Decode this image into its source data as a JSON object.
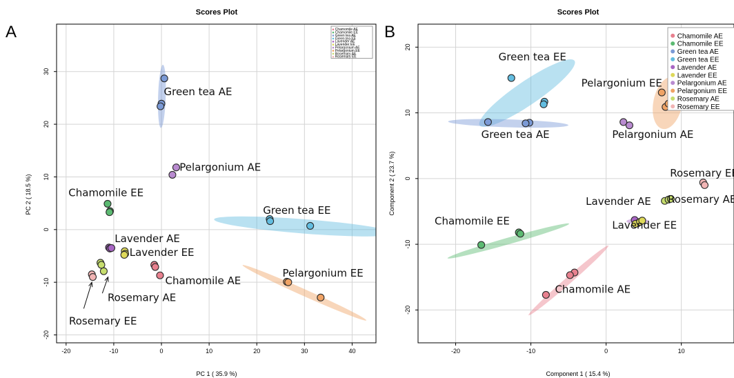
{
  "chart_data": [
    {
      "type": "scatter",
      "panel_letter": "A",
      "title": "Scores Plot",
      "xlabel": "PC 1 ( 35.9 %)",
      "ylabel": "PC 2 ( 18.5 %)",
      "xlim": [
        -22,
        45
      ],
      "ylim": [
        -21.5,
        39
      ],
      "xticks": [
        -20,
        -10,
        0,
        10,
        20,
        30,
        40
      ],
      "yticks": [
        -20,
        -10,
        0,
        10,
        20,
        30
      ],
      "grid": true,
      "legend_position": "top-right",
      "series": [
        {
          "name": "Chamomile AE",
          "color": "#e8818f",
          "points": [
            [
              -1.5,
              -6.7
            ],
            [
              -1.3,
              -7.1
            ],
            [
              -0.3,
              -8.7
            ]
          ]
        },
        {
          "name": "Chamomile EE",
          "color": "#5cba72",
          "points": [
            [
              -11.3,
              4.9
            ],
            [
              -10.8,
              3.5
            ],
            [
              -10.9,
              3.3
            ]
          ]
        },
        {
          "name": "Green tea AE",
          "color": "#7b9ad6",
          "points": [
            [
              0.6,
              28.7
            ],
            [
              0.0,
              23.9
            ],
            [
              -0.2,
              23.4
            ]
          ]
        },
        {
          "name": "Green tea EE",
          "color": "#63bde0",
          "points": [
            [
              22.7,
              2.0
            ],
            [
              22.8,
              1.6
            ],
            [
              31.2,
              0.7
            ]
          ]
        },
        {
          "name": "Lavender AE",
          "color": "#a866c4",
          "points": [
            [
              -11.0,
              -3.4
            ],
            [
              -10.8,
              -3.6
            ],
            [
              -10.5,
              -3.5
            ]
          ]
        },
        {
          "name": "Lavender EE",
          "color": "#ded95a",
          "points": [
            [
              -7.7,
              -4.1
            ],
            [
              -7.6,
              -4.6
            ],
            [
              -7.8,
              -4.8
            ]
          ]
        },
        {
          "name": "Pelargonium AE",
          "color": "#b98bd0",
          "points": [
            [
              3.1,
              11.8
            ],
            [
              2.3,
              10.4
            ]
          ]
        },
        {
          "name": "Pelargonium EE",
          "color": "#f0a365",
          "points": [
            [
              26.3,
              -9.9
            ],
            [
              26.6,
              -10.0
            ],
            [
              33.4,
              -12.9
            ]
          ]
        },
        {
          "name": "Rosemary AE",
          "color": "#c7de6e",
          "points": [
            [
              -12.8,
              -6.3
            ],
            [
              -12.6,
              -6.7
            ],
            [
              -12.1,
              -7.9
            ]
          ]
        },
        {
          "name": "Rosemary EE",
          "color": "#f2b5b5",
          "points": [
            [
              -14.6,
              -8.5
            ],
            [
              -14.4,
              -9.0
            ]
          ]
        }
      ],
      "ellipses": [
        {
          "series": "Green tea AE",
          "cx": 0.1,
          "cy": 25.3,
          "len": 12,
          "width": 0.8,
          "angle": 88,
          "color": "#7b9ad6"
        },
        {
          "series": "Green tea EE",
          "cx": 30.0,
          "cy": 0.6,
          "len": 38,
          "width": 1.5,
          "angle": -4,
          "color": "#63bde0"
        },
        {
          "series": "Pelargonium EE",
          "cx": 30.0,
          "cy": -12.0,
          "len": 28,
          "width": 0.7,
          "angle": -22,
          "color": "#f0a365"
        }
      ],
      "annotations": [
        {
          "text": "Green tea AE",
          "x": 0.5,
          "y": 25.5
        },
        {
          "text": "Pelargonium AE",
          "x": 3.8,
          "y": 11.2
        },
        {
          "text": "Chamomile EE",
          "x": -19.5,
          "y": 6.3
        },
        {
          "text": "Green tea EE",
          "x": 21.3,
          "y": 3.0
        },
        {
          "text": "Lavender AE",
          "x": -9.8,
          "y": -2.4
        },
        {
          "text": "Lavender EE",
          "x": -6.7,
          "y": -5.0
        },
        {
          "text": "Chamomile AE",
          "x": 0.8,
          "y": -10.4
        },
        {
          "text": "Pelargonium EE",
          "x": 25.4,
          "y": -8.9
        },
        {
          "text": "Rosemary AE",
          "x": -11.3,
          "y": -13.6
        },
        {
          "text": "Rosemary EE",
          "x": -19.4,
          "y": -18.0
        }
      ],
      "arrows": [
        {
          "from": [
            -12.4,
            -12.1
          ],
          "to": [
            -11.2,
            -9.0
          ]
        },
        {
          "from": [
            -16.3,
            -15.0
          ],
          "to": [
            -14.6,
            -10.0
          ]
        }
      ]
    },
    {
      "type": "scatter",
      "panel_letter": "B",
      "title": "Scores Plot",
      "xlabel": "Component 1 ( 15.4 %)",
      "ylabel": "Component 2 ( 23.7 %)",
      "xlim": [
        -25,
        17
      ],
      "ylim": [
        -25,
        23.5
      ],
      "xticks": [
        -20,
        -10,
        0,
        10
      ],
      "yticks": [
        -20,
        -10,
        0,
        10,
        20
      ],
      "grid": true,
      "legend_position": "top-right",
      "series": [
        {
          "name": "Chamomile AE",
          "color": "#e8818f",
          "points": [
            [
              -4.2,
              -14.3
            ],
            [
              -4.8,
              -14.7
            ],
            [
              -8.0,
              -17.7
            ]
          ]
        },
        {
          "name": "Chamomile EE",
          "color": "#5cba72",
          "points": [
            [
              -11.6,
              -8.2
            ],
            [
              -11.4,
              -8.4
            ],
            [
              -16.6,
              -10.1
            ]
          ]
        },
        {
          "name": "Green tea AE",
          "color": "#7b9ad6",
          "points": [
            [
              -15.7,
              8.6
            ],
            [
              -10.2,
              8.5
            ],
            [
              -10.7,
              8.4
            ]
          ]
        },
        {
          "name": "Green tea EE",
          "color": "#63bde0",
          "points": [
            [
              -12.6,
              15.3
            ],
            [
              -8.2,
              11.7
            ],
            [
              -8.3,
              11.3
            ]
          ]
        },
        {
          "name": "Lavender AE",
          "color": "#a866c4",
          "points": [
            [
              3.8,
              -6.3
            ],
            [
              4.2,
              -6.8
            ]
          ]
        },
        {
          "name": "Lavender EE",
          "color": "#ded95a",
          "points": [
            [
              3.9,
              -6.9
            ],
            [
              4.5,
              -6.6
            ],
            [
              4.8,
              -6.4
            ]
          ]
        },
        {
          "name": "Pelargonium AE",
          "color": "#b98bd0",
          "points": [
            [
              2.3,
              8.6
            ],
            [
              3.1,
              8.1
            ]
          ]
        },
        {
          "name": "Pelargonium EE",
          "color": "#f0a365",
          "points": [
            [
              7.4,
              13.1
            ],
            [
              7.9,
              10.9
            ],
            [
              8.3,
              11.4
            ]
          ]
        },
        {
          "name": "Rosemary AE",
          "color": "#c7de6e",
          "points": [
            [
              7.8,
              -3.4
            ],
            [
              8.3,
              -3.2
            ],
            [
              8.6,
              -3.1
            ]
          ]
        },
        {
          "name": "Rosemary EE",
          "color": "#f2b5b5",
          "points": [
            [
              12.9,
              -0.6
            ],
            [
              13.1,
              -1.0
            ]
          ]
        }
      ],
      "ellipses": [
        {
          "series": "Green tea EE",
          "cx": -10.5,
          "cy": 13.0,
          "len": 16,
          "width": 1.8,
          "angle": 38,
          "color": "#63bde0"
        },
        {
          "series": "Green tea AE",
          "cx": -13.0,
          "cy": 8.4,
          "len": 16,
          "width": 0.6,
          "angle": -2,
          "color": "#7b9ad6"
        },
        {
          "series": "Chamomile EE",
          "cx": -13.0,
          "cy": -9.5,
          "len": 17,
          "width": 0.5,
          "angle": 18,
          "color": "#5cba72"
        },
        {
          "series": "Chamomile AE",
          "cx": -5.0,
          "cy": -15.5,
          "len": 15,
          "width": 0.5,
          "angle": 45,
          "color": "#e8818f"
        },
        {
          "series": "Pelargonium EE",
          "cx": 8.2,
          "cy": 11.5,
          "len": 8,
          "width": 2.2,
          "angle": 80,
          "color": "#f0a365"
        },
        {
          "series": "Lavender AE",
          "cx": 4.2,
          "cy": -6.5,
          "len": 3,
          "width": 0.4,
          "angle": 0,
          "color": "#a866c4"
        }
      ],
      "annotations": [
        {
          "text": "Green tea EE",
          "x": -14.3,
          "y": 18.0
        },
        {
          "text": "Pelargonium EE",
          "x": -3.3,
          "y": 14.0
        },
        {
          "text": "Green tea AE",
          "x": -16.6,
          "y": 6.2
        },
        {
          "text": "Pelargonium AE",
          "x": 0.8,
          "y": 6.2
        },
        {
          "text": "Rosemary EE",
          "x": 8.5,
          "y": 0.3
        },
        {
          "text": "Lavender AE",
          "x": -2.7,
          "y": -4.0
        },
        {
          "text": "Rosemary AE",
          "x": 8.2,
          "y": -3.7
        },
        {
          "text": "Chamomile EE",
          "x": -22.8,
          "y": -7.0
        },
        {
          "text": "Lavender EE",
          "x": 0.8,
          "y": -7.6
        },
        {
          "text": "Chamomile AE",
          "x": -6.8,
          "y": -17.4
        }
      ]
    }
  ]
}
